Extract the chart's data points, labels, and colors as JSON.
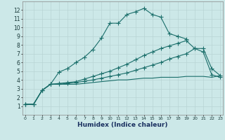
{
  "xlabel": "Humidex (Indice chaleur)",
  "bg_color": "#cce8e8",
  "grid_color": "#b8d4d4",
  "line_color": "#1a6e6a",
  "xlim": [
    -0.5,
    23.5
  ],
  "ylim": [
    0,
    13
  ],
  "series1_x": [
    0,
    1,
    2,
    3,
    4,
    5,
    6,
    7,
    8,
    9,
    10,
    11,
    12,
    13,
    14,
    15,
    16,
    17,
    18,
    19
  ],
  "series1_y": [
    1.2,
    1.2,
    2.8,
    3.5,
    4.9,
    5.3,
    6.0,
    6.6,
    7.5,
    8.8,
    10.5,
    10.5,
    11.5,
    11.8,
    12.2,
    11.5,
    11.2,
    9.3,
    9.0,
    8.7
  ],
  "series2_x": [
    0,
    1,
    2,
    3,
    4,
    5,
    6,
    7,
    8,
    9,
    10,
    11,
    12,
    13,
    14,
    15,
    16,
    17,
    18,
    19,
    20,
    21,
    22,
    23
  ],
  "series2_y": [
    1.2,
    1.2,
    2.8,
    3.5,
    3.6,
    3.7,
    3.8,
    4.1,
    4.4,
    4.7,
    5.0,
    5.4,
    5.8,
    6.3,
    6.8,
    7.2,
    7.6,
    7.9,
    8.2,
    8.5,
    7.6,
    7.6,
    5.3,
    4.5
  ],
  "series3_x": [
    0,
    1,
    2,
    3,
    4,
    5,
    6,
    7,
    8,
    9,
    10,
    11,
    12,
    13,
    14,
    15,
    16,
    17,
    18,
    19,
    20,
    21,
    22,
    23
  ],
  "series3_y": [
    1.2,
    1.2,
    2.8,
    3.5,
    3.5,
    3.6,
    3.7,
    3.85,
    4.0,
    4.2,
    4.4,
    4.6,
    4.8,
    5.1,
    5.4,
    5.7,
    6.0,
    6.4,
    6.7,
    7.0,
    7.6,
    7.2,
    4.6,
    4.3
  ],
  "series4_x": [
    0,
    1,
    2,
    3,
    4,
    5,
    6,
    7,
    8,
    9,
    10,
    11,
    12,
    13,
    14,
    15,
    16,
    17,
    18,
    19,
    20,
    21,
    22,
    23
  ],
  "series4_y": [
    1.2,
    1.2,
    2.8,
    3.5,
    3.5,
    3.5,
    3.5,
    3.6,
    3.7,
    3.8,
    3.9,
    4.0,
    4.0,
    4.1,
    4.2,
    4.2,
    4.3,
    4.3,
    4.3,
    4.4,
    4.4,
    4.4,
    4.3,
    4.5
  ]
}
